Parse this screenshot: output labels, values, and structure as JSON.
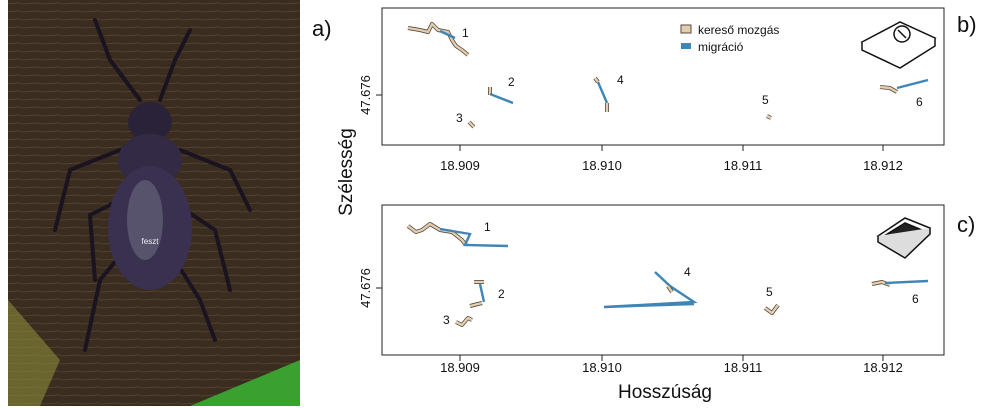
{
  "figure": {
    "panel_labels": [
      "a)",
      "b)",
      "c)"
    ],
    "photo_tag": "feszt",
    "y_label": "Szélesség",
    "x_label": "Hosszúság",
    "y_tick": "47.676",
    "x_ticks": [
      "18.909",
      "18.910",
      "18.911",
      "18.912"
    ],
    "legend": [
      "kereső mozgás",
      "migráció"
    ],
    "track_labels": [
      "1",
      "2",
      "3",
      "4",
      "5",
      "6"
    ]
  }
}
